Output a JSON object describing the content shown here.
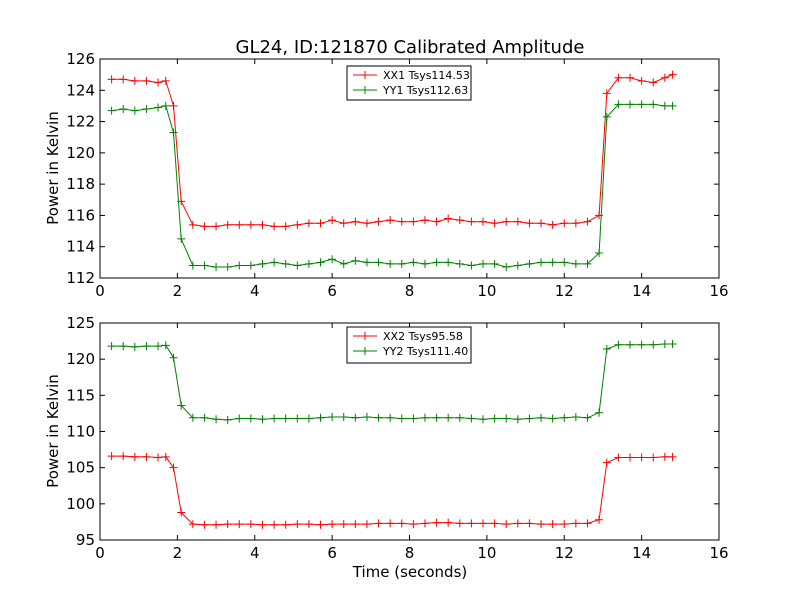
{
  "chart_data": [
    {
      "type": "line",
      "title": "GL24, ID:121870 Calibrated Amplitude",
      "xlabel": "",
      "ylabel": "Power in Kelvin",
      "xlim": [
        0,
        16
      ],
      "ylim": [
        112,
        126
      ],
      "xticks": [
        "0",
        "2",
        "4",
        "6",
        "8",
        "10",
        "12",
        "14",
        "16"
      ],
      "yticks": [
        "112",
        "114",
        "116",
        "118",
        "120",
        "122",
        "124",
        "126"
      ],
      "grid": false,
      "legend": "top-center",
      "x": [
        0.3,
        0.6,
        0.9,
        1.2,
        1.5,
        1.7,
        1.9,
        2.1,
        2.4,
        2.7,
        3.0,
        3.3,
        3.6,
        3.9,
        4.2,
        4.5,
        4.8,
        5.1,
        5.4,
        5.7,
        6.0,
        6.3,
        6.6,
        6.9,
        7.2,
        7.5,
        7.8,
        8.1,
        8.4,
        8.7,
        9.0,
        9.3,
        9.6,
        9.9,
        10.2,
        10.5,
        10.8,
        11.1,
        11.4,
        11.7,
        12.0,
        12.3,
        12.6,
        12.9,
        13.1,
        13.4,
        13.7,
        14.0,
        14.3,
        14.6,
        14.8
      ],
      "series": [
        {
          "name": "XX1 Tsys114.53",
          "color": "#ff0000",
          "values": [
            124.7,
            124.7,
            124.6,
            124.6,
            124.5,
            124.6,
            123.0,
            116.9,
            115.4,
            115.3,
            115.3,
            115.4,
            115.4,
            115.4,
            115.4,
            115.3,
            115.3,
            115.4,
            115.5,
            115.5,
            115.7,
            115.5,
            115.6,
            115.5,
            115.6,
            115.7,
            115.6,
            115.6,
            115.7,
            115.6,
            115.8,
            115.7,
            115.6,
            115.6,
            115.5,
            115.6,
            115.6,
            115.5,
            115.5,
            115.4,
            115.5,
            115.5,
            115.6,
            116.0,
            123.8,
            124.8,
            124.8,
            124.6,
            124.5,
            124.8,
            125.0
          ]
        },
        {
          "name": "YY1 Tsys112.63",
          "color": "#008000",
          "values": [
            122.7,
            122.8,
            122.7,
            122.8,
            122.9,
            123.0,
            121.3,
            114.5,
            112.8,
            112.8,
            112.7,
            112.7,
            112.8,
            112.8,
            112.9,
            113.0,
            112.9,
            112.8,
            112.9,
            113.0,
            113.2,
            112.9,
            113.1,
            113.0,
            113.0,
            112.9,
            112.9,
            113.0,
            112.9,
            113.0,
            113.0,
            112.9,
            112.8,
            112.9,
            112.9,
            112.7,
            112.8,
            112.9,
            113.0,
            113.0,
            113.0,
            112.9,
            112.9,
            113.6,
            122.3,
            123.1,
            123.1,
            123.1,
            123.1,
            123.0,
            123.0
          ]
        }
      ]
    },
    {
      "type": "line",
      "title": "",
      "xlabel": "Time (seconds)",
      "ylabel": "Power in Kelvin",
      "xlim": [
        0,
        16
      ],
      "ylim": [
        95,
        125
      ],
      "xticks": [
        "0",
        "2",
        "4",
        "6",
        "8",
        "10",
        "12",
        "14",
        "16"
      ],
      "yticks": [
        "95",
        "100",
        "105",
        "110",
        "115",
        "120",
        "125"
      ],
      "grid": false,
      "legend": "top-center",
      "x": [
        0.3,
        0.6,
        0.9,
        1.2,
        1.5,
        1.7,
        1.9,
        2.1,
        2.4,
        2.7,
        3.0,
        3.3,
        3.6,
        3.9,
        4.2,
        4.5,
        4.8,
        5.1,
        5.4,
        5.7,
        6.0,
        6.3,
        6.6,
        6.9,
        7.2,
        7.5,
        7.8,
        8.1,
        8.4,
        8.7,
        9.0,
        9.3,
        9.6,
        9.9,
        10.2,
        10.5,
        10.8,
        11.1,
        11.4,
        11.7,
        12.0,
        12.3,
        12.6,
        12.9,
        13.1,
        13.4,
        13.7,
        14.0,
        14.3,
        14.6,
        14.8
      ],
      "series": [
        {
          "name": "XX2 Tsys95.58",
          "color": "#ff0000",
          "values": [
            106.6,
            106.6,
            106.5,
            106.5,
            106.4,
            106.5,
            105.0,
            98.8,
            97.2,
            97.1,
            97.1,
            97.2,
            97.2,
            97.2,
            97.1,
            97.1,
            97.1,
            97.2,
            97.2,
            97.1,
            97.2,
            97.2,
            97.2,
            97.2,
            97.3,
            97.3,
            97.3,
            97.2,
            97.3,
            97.4,
            97.4,
            97.3,
            97.3,
            97.3,
            97.3,
            97.2,
            97.3,
            97.3,
            97.2,
            97.2,
            97.2,
            97.3,
            97.3,
            97.8,
            105.7,
            106.4,
            106.4,
            106.4,
            106.4,
            106.5,
            106.5
          ]
        },
        {
          "name": "YY2 Tsys111.40",
          "color": "#008000",
          "values": [
            121.8,
            121.8,
            121.7,
            121.8,
            121.8,
            121.9,
            120.2,
            113.6,
            111.9,
            111.9,
            111.7,
            111.6,
            111.8,
            111.8,
            111.7,
            111.8,
            111.8,
            111.8,
            111.8,
            111.9,
            112.0,
            112.0,
            111.9,
            112.0,
            111.9,
            111.9,
            111.8,
            111.8,
            111.9,
            111.9,
            111.9,
            111.9,
            111.8,
            111.7,
            111.8,
            111.8,
            111.7,
            111.8,
            111.9,
            111.8,
            111.9,
            112.0,
            111.9,
            112.6,
            121.4,
            122.0,
            122.0,
            122.0,
            122.0,
            122.1,
            122.1
          ]
        }
      ]
    }
  ]
}
